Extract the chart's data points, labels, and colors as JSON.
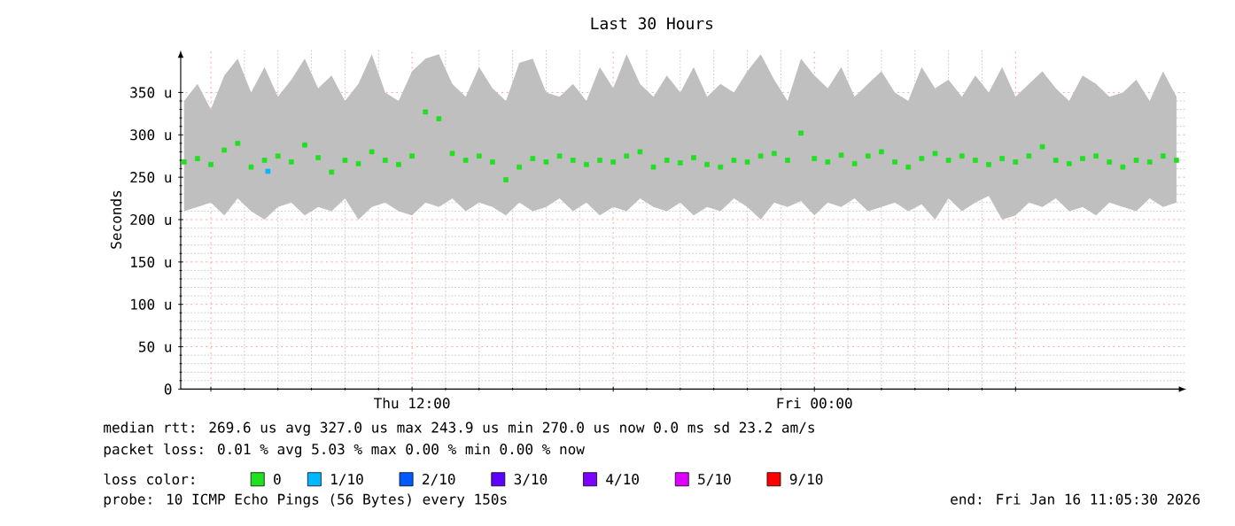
{
  "chart_data": {
    "type": "scatter",
    "title": "Last 30 Hours",
    "ylabel": "Seconds",
    "xlim": [
      "2026-01-15T05:06",
      "2026-01-16T11:06"
    ],
    "xticks": [
      {
        "value": "2026-01-15T06:00",
        "label": null
      },
      {
        "value": "2026-01-15T12:00",
        "label": "Thu 12:00"
      },
      {
        "value": "2026-01-15T18:00",
        "label": null
      },
      {
        "value": "2026-01-16T00:00",
        "label": "Fri 00:00"
      },
      {
        "value": "2026-01-16T06:00",
        "label": null
      }
    ],
    "ylim": [
      0,
      400
    ],
    "yticks": [
      {
        "value": 0,
        "label": "0"
      },
      {
        "value": 50,
        "label": "50 u"
      },
      {
        "value": 100,
        "label": "100 u"
      },
      {
        "value": 150,
        "label": "150 u"
      },
      {
        "value": 200,
        "label": "200 u"
      },
      {
        "value": 250,
        "label": "250 u"
      },
      {
        "value": 300,
        "label": "300 u"
      },
      {
        "value": 350,
        "label": "350 u"
      }
    ],
    "grid": true,
    "marker": "square",
    "legend": "bottom",
    "legend_title": "loss color:",
    "series": [
      {
        "name": "0",
        "color": "#20e020",
        "x": [
          "2026-01-15T05:12",
          "2026-01-15T05:36",
          "2026-01-15T06:00",
          "2026-01-15T06:24",
          "2026-01-15T06:48",
          "2026-01-15T07:12",
          "2026-01-15T07:36",
          "2026-01-15T08:00",
          "2026-01-15T08:24",
          "2026-01-15T08:48",
          "2026-01-15T09:12",
          "2026-01-15T09:36",
          "2026-01-15T10:00",
          "2026-01-15T10:24",
          "2026-01-15T10:48",
          "2026-01-15T11:12",
          "2026-01-15T11:36",
          "2026-01-15T12:00",
          "2026-01-15T12:24",
          "2026-01-15T12:48",
          "2026-01-15T13:12",
          "2026-01-15T13:36",
          "2026-01-15T14:00",
          "2026-01-15T14:24",
          "2026-01-15T14:48",
          "2026-01-15T15:12",
          "2026-01-15T15:36",
          "2026-01-15T16:00",
          "2026-01-15T16:24",
          "2026-01-15T16:48",
          "2026-01-15T17:12",
          "2026-01-15T17:36",
          "2026-01-15T18:00",
          "2026-01-15T18:24",
          "2026-01-15T18:48",
          "2026-01-15T19:12",
          "2026-01-15T19:36",
          "2026-01-15T20:00",
          "2026-01-15T20:24",
          "2026-01-15T20:48",
          "2026-01-15T21:12",
          "2026-01-15T21:36",
          "2026-01-15T22:00",
          "2026-01-15T22:24",
          "2026-01-15T22:48",
          "2026-01-15T23:12",
          "2026-01-15T23:36",
          "2026-01-16T00:00",
          "2026-01-16T00:24",
          "2026-01-16T00:48",
          "2026-01-16T01:12",
          "2026-01-16T01:36",
          "2026-01-16T02:00",
          "2026-01-16T02:24",
          "2026-01-16T02:48",
          "2026-01-16T03:12",
          "2026-01-16T03:36",
          "2026-01-16T04:00",
          "2026-01-16T04:24",
          "2026-01-16T04:48",
          "2026-01-16T05:12",
          "2026-01-16T05:36",
          "2026-01-16T06:00",
          "2026-01-16T06:24",
          "2026-01-16T06:48",
          "2026-01-16T07:12",
          "2026-01-16T07:36",
          "2026-01-16T08:00",
          "2026-01-16T08:24",
          "2026-01-16T08:48",
          "2026-01-16T09:12",
          "2026-01-16T09:36",
          "2026-01-16T10:00",
          "2026-01-16T10:24",
          "2026-01-16T10:48"
        ],
        "values": [
          268,
          272,
          265,
          282,
          290,
          262,
          270,
          275,
          268,
          288,
          273,
          256,
          270,
          266,
          280,
          270,
          265,
          275,
          327,
          319,
          278,
          270,
          275,
          268,
          247,
          262,
          272,
          268,
          275,
          270,
          265,
          270,
          268,
          275,
          280,
          262,
          270,
          267,
          273,
          265,
          262,
          270,
          268,
          275,
          278,
          270,
          302,
          272,
          268,
          276,
          266,
          275,
          280,
          268,
          262,
          272,
          278,
          270,
          275,
          270,
          265,
          272,
          268,
          275,
          286,
          270,
          266,
          272,
          275,
          268,
          262,
          270,
          268,
          275,
          270
        ],
        "upper": [
          340,
          360,
          330,
          370,
          390,
          350,
          380,
          345,
          365,
          390,
          355,
          370,
          340,
          360,
          395,
          350,
          340,
          375,
          390,
          395,
          360,
          345,
          380,
          355,
          340,
          385,
          390,
          350,
          345,
          360,
          340,
          380,
          355,
          395,
          360,
          345,
          370,
          350,
          380,
          345,
          360,
          350,
          375,
          395,
          365,
          340,
          390,
          370,
          355,
          380,
          345,
          360,
          375,
          350,
          340,
          380,
          355,
          365,
          345,
          370,
          350,
          380,
          345,
          360,
          375,
          355,
          340,
          370,
          360,
          345,
          350,
          365,
          340,
          375,
          345
        ],
        "lower": [
          210,
          215,
          220,
          205,
          225,
          210,
          200,
          215,
          220,
          205,
          215,
          210,
          225,
          200,
          215,
          220,
          210,
          205,
          220,
          215,
          225,
          210,
          220,
          215,
          205,
          220,
          210,
          215,
          225,
          210,
          220,
          205,
          215,
          210,
          225,
          215,
          210,
          220,
          205,
          215,
          210,
          225,
          215,
          200,
          220,
          215,
          222,
          205,
          220,
          215,
          225,
          210,
          215,
          220,
          210,
          218,
          200,
          225,
          210,
          220,
          228,
          200,
          205,
          220,
          215,
          225,
          210,
          215,
          205,
          220,
          215,
          210,
          225,
          215,
          220
        ]
      },
      {
        "name": "1/10",
        "color": "#00b8ff",
        "x": [
          "2026-01-15T07:42"
        ],
        "values": [
          257
        ]
      },
      {
        "name": "2/10",
        "color": "#0059ff"
      },
      {
        "name": "3/10",
        "color": "#5e00ff"
      },
      {
        "name": "4/10",
        "color": "#7e00ff"
      },
      {
        "name": "5/10",
        "color": "#dd00ff"
      },
      {
        "name": "9/10",
        "color": "#ff0000"
      }
    ],
    "annotations": [
      "median rtt:  269.6 us avg  327.0 us max  243.9 us min  270.0 us now  0.0 ms sd  23.2   am/s",
      "packet loss: 0.01 % avg  5.03 % max  0.00 % min  0.00 % now",
      "probe:       10 ICMP Echo Pings (56 Bytes) every 150s",
      "end: Fri Jan 16 11:05:30 2026"
    ]
  }
}
